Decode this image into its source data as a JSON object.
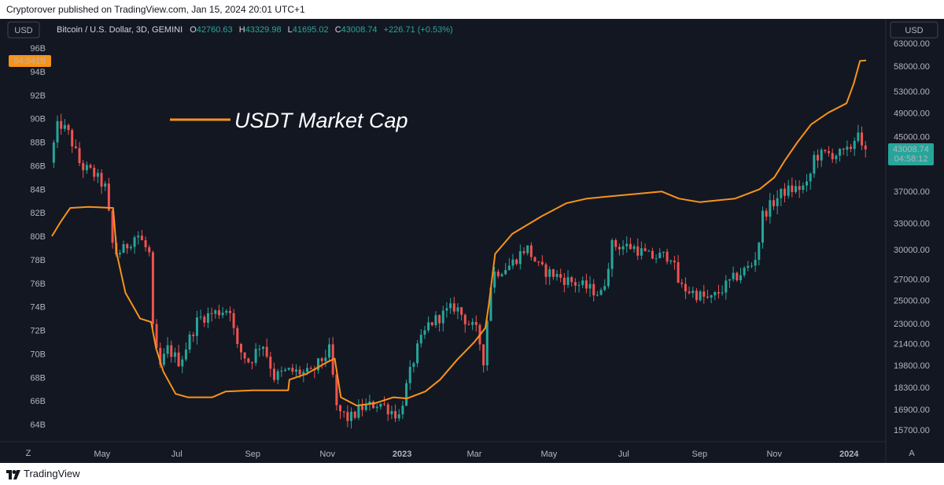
{
  "header": {
    "text": "Cryptorover published on TradingView.com, Jan 15, 2024 20:01 UTC+1"
  },
  "footer": {
    "brand": "TradingView"
  },
  "colors": {
    "background": "#131722",
    "up": "#26a69a",
    "down": "#ef5350",
    "usdt_line": "#f7931a",
    "axis_text": "#b2b5be",
    "last_price_bg": "#26a69a",
    "cap_badge_bg": "#f7931a"
  },
  "chart_data": {
    "type": "candlestick",
    "symbol": {
      "name": "Bitcoin / U.S. Dollar, 3D, GEMINI",
      "o_label": "O",
      "o_value": "42760.63",
      "h_label": "H",
      "h_value": "43329.98",
      "l_label": "L",
      "l_value": "41695.02",
      "c_label": "C",
      "c_value": "43008.74",
      "change": "+226.71 (+0.53%)"
    },
    "left_axis": {
      "currency": "USD",
      "ticks": [
        "96B",
        "94B",
        "92B",
        "90B",
        "88B",
        "86B",
        "84B",
        "82B",
        "80B",
        "78B",
        "76B",
        "74B",
        "72B",
        "70B",
        "68B",
        "66B",
        "64B"
      ],
      "current_label": "94.941B"
    },
    "right_axis": {
      "currency": "USD",
      "scale": "log",
      "ticks": [
        "63000.00",
        "58000.00",
        "53000.00",
        "49000.00",
        "45000.00",
        "37000.00",
        "33000.00",
        "30000.00",
        "27000.00",
        "25000.00",
        "23000.00",
        "21400.00",
        "19800.00",
        "18300.00",
        "16900.00",
        "15700.00"
      ],
      "last_price": "43008.74",
      "countdown": "04:58:12"
    },
    "x_axis": {
      "ticks": [
        "May",
        "Jul",
        "Sep",
        "Nov",
        "2023",
        "Mar",
        "May",
        "Jul",
        "Sep",
        "Nov",
        "2024"
      ],
      "left_button": "Z",
      "right_button": "A"
    },
    "legend": {
      "usdt_label": "USDT Market Cap"
    },
    "btc_anchors": [
      [
        "2022-03-21",
        41000
      ],
      [
        "2022-03-28",
        47500
      ],
      [
        "2022-04-05",
        45500
      ],
      [
        "2022-04-15",
        40500
      ],
      [
        "2022-04-25",
        39500
      ],
      [
        "2022-05-05",
        37500
      ],
      [
        "2022-05-08",
        34000
      ],
      [
        "2022-05-12",
        29500
      ],
      [
        "2022-05-20",
        30000
      ],
      [
        "2022-05-31",
        31800
      ],
      [
        "2022-06-10",
        29500
      ],
      [
        "2022-06-13",
        22500
      ],
      [
        "2022-06-18",
        19500
      ],
      [
        "2022-06-25",
        21000
      ],
      [
        "2022-07-05",
        20000
      ],
      [
        "2022-07-20",
        23400
      ],
      [
        "2022-07-30",
        23800
      ],
      [
        "2022-08-15",
        24300
      ],
      [
        "2022-08-20",
        21200
      ],
      [
        "2022-08-31",
        20000
      ],
      [
        "2022-09-10",
        21600
      ],
      [
        "2022-09-20",
        19000
      ],
      [
        "2022-10-01",
        19400
      ],
      [
        "2022-10-20",
        19200
      ],
      [
        "2022-11-05",
        21000
      ],
      [
        "2022-11-09",
        17000
      ],
      [
        "2022-11-20",
        16300
      ],
      [
        "2022-12-01",
        17000
      ],
      [
        "2022-12-15",
        17300
      ],
      [
        "2022-12-31",
        16500
      ],
      [
        "2023-01-14",
        20800
      ],
      [
        "2023-01-24",
        22900
      ],
      [
        "2023-02-15",
        24500
      ],
      [
        "2023-02-24",
        23200
      ],
      [
        "2023-03-05",
        22300
      ],
      [
        "2023-03-10",
        20200
      ],
      [
        "2023-03-17",
        27500
      ],
      [
        "2023-04-01",
        28400
      ],
      [
        "2023-04-14",
        30300
      ],
      [
        "2023-04-25",
        28000
      ],
      [
        "2023-05-15",
        27000
      ],
      [
        "2023-06-10",
        25800
      ],
      [
        "2023-06-15",
        25500
      ],
      [
        "2023-06-23",
        30500
      ],
      [
        "2023-07-10",
        30300
      ],
      [
        "2023-07-24",
        29200
      ],
      [
        "2023-08-10",
        29400
      ],
      [
        "2023-08-17",
        26300
      ],
      [
        "2023-09-11",
        25000
      ],
      [
        "2023-09-30",
        27000
      ],
      [
        "2023-10-16",
        28500
      ],
      [
        "2023-10-20",
        30000
      ],
      [
        "2023-10-24",
        34000
      ],
      [
        "2023-11-10",
        37000
      ],
      [
        "2023-11-30",
        37700
      ],
      [
        "2023-12-05",
        41900
      ],
      [
        "2023-12-15",
        42300
      ],
      [
        "2023-12-31",
        42300
      ],
      [
        "2024-01-06",
        44000
      ],
      [
        "2024-01-10",
        46500
      ],
      [
        "2024-01-12",
        42800
      ],
      [
        "2024-01-15",
        43008
      ]
    ],
    "usdt_cap_b": [
      [
        "2022-03-21",
        80.0
      ],
      [
        "2022-03-28",
        81.2
      ],
      [
        "2022-04-05",
        82.4
      ],
      [
        "2022-04-20",
        82.5
      ],
      [
        "2022-05-10",
        82.4
      ],
      [
        "2022-05-13",
        78.5
      ],
      [
        "2022-05-20",
        75.2
      ],
      [
        "2022-06-01",
        73.0
      ],
      [
        "2022-06-10",
        72.7
      ],
      [
        "2022-06-14",
        70.5
      ],
      [
        "2022-06-20",
        68.5
      ],
      [
        "2022-06-30",
        66.6
      ],
      [
        "2022-07-10",
        66.3
      ],
      [
        "2022-07-30",
        66.3
      ],
      [
        "2022-08-10",
        66.8
      ],
      [
        "2022-09-01",
        66.9
      ],
      [
        "2022-09-30",
        66.9
      ],
      [
        "2022-10-01",
        67.8
      ],
      [
        "2022-10-15",
        68.3
      ],
      [
        "2022-11-01",
        69.3
      ],
      [
        "2022-11-07",
        69.6
      ],
      [
        "2022-11-12",
        66.3
      ],
      [
        "2022-11-25",
        65.6
      ],
      [
        "2022-12-10",
        65.8
      ],
      [
        "2022-12-25",
        66.3
      ],
      [
        "2023-01-05",
        66.2
      ],
      [
        "2023-01-20",
        66.8
      ],
      [
        "2023-02-01",
        67.8
      ],
      [
        "2023-02-15",
        69.5
      ],
      [
        "2023-03-01",
        71.0
      ],
      [
        "2023-03-10",
        72.2
      ],
      [
        "2023-03-13",
        74.3
      ],
      [
        "2023-03-18",
        78.5
      ],
      [
        "2023-04-01",
        80.2
      ],
      [
        "2023-04-25",
        81.7
      ],
      [
        "2023-05-15",
        82.8
      ],
      [
        "2023-06-01",
        83.2
      ],
      [
        "2023-07-01",
        83.5
      ],
      [
        "2023-08-01",
        83.8
      ],
      [
        "2023-08-15",
        83.2
      ],
      [
        "2023-09-01",
        82.9
      ],
      [
        "2023-09-30",
        83.2
      ],
      [
        "2023-10-20",
        84.0
      ],
      [
        "2023-11-01",
        85.0
      ],
      [
        "2023-11-10",
        86.5
      ],
      [
        "2023-11-20",
        88.0
      ],
      [
        "2023-12-01",
        89.5
      ],
      [
        "2023-12-15",
        90.5
      ],
      [
        "2023-12-30",
        91.3
      ],
      [
        "2024-01-05",
        93.0
      ],
      [
        "2024-01-10",
        94.9
      ],
      [
        "2024-01-15",
        94.941
      ]
    ]
  }
}
